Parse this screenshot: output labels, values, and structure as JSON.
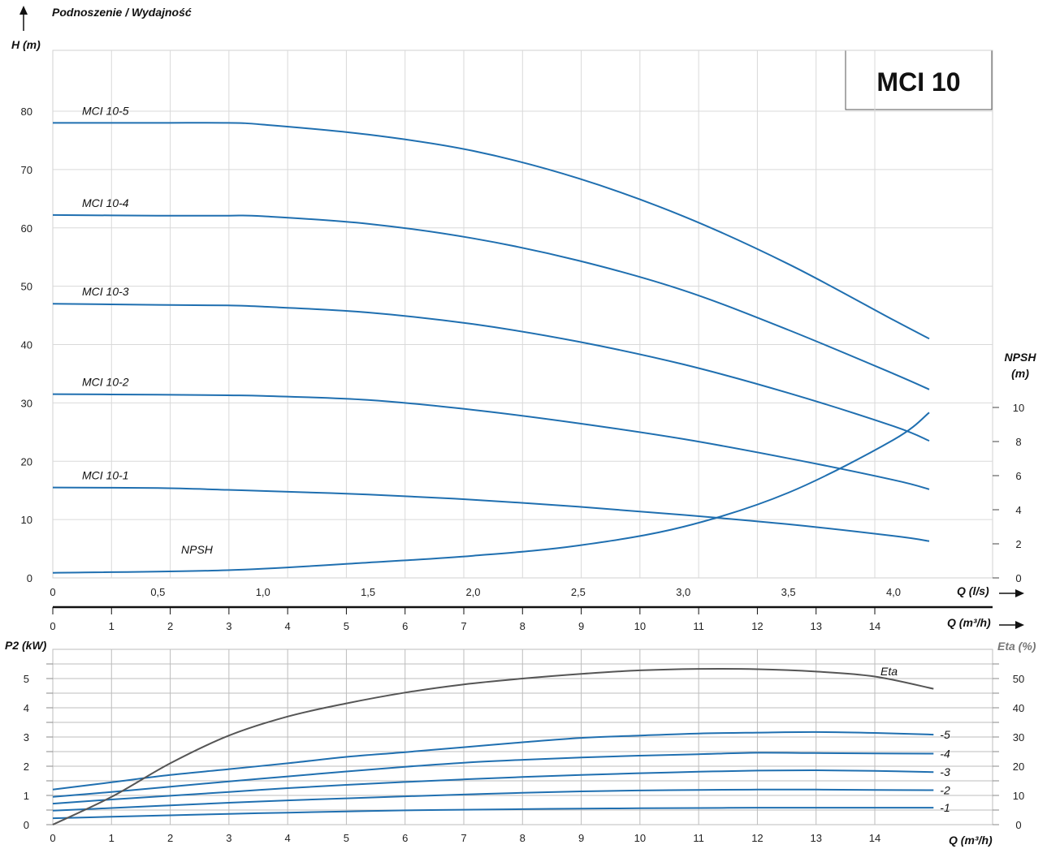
{
  "title": "MCI 10",
  "top_label": "Podnoszenie / Wydajność",
  "chart_data": [
    {
      "type": "line",
      "name": "head-curves",
      "ylabel": "H (m)",
      "ylim": [
        0,
        85
      ],
      "yticks": [
        0,
        10,
        20,
        30,
        40,
        50,
        60,
        70,
        80
      ],
      "xlabel_ls": "Q (l/s)",
      "xlim_ls": [
        0,
        4.45
      ],
      "xticks_ls": [
        "0",
        "0,5",
        "1,0",
        "1,5",
        "2,0",
        "2,5",
        "3,0",
        "3,5",
        "4,0"
      ],
      "xlabel_m3h": "Q (m³/h)",
      "xticks_m3h": [
        "0",
        "1",
        "2",
        "3",
        "4",
        "5",
        "6",
        "7",
        "8",
        "9",
        "10",
        "11",
        "12",
        "13",
        "14"
      ],
      "y2label": "NPSH (m)",
      "y2ticks": [
        0,
        2,
        4,
        6,
        8,
        10
      ],
      "y2lim": [
        0,
        10
      ],
      "series": [
        {
          "name": "MCI 10-5",
          "x": [
            0,
            0.5,
            0.83,
            1.0,
            1.5,
            2.0,
            2.5,
            3.0,
            3.5,
            4.0,
            4.17
          ],
          "y": [
            78,
            78,
            78,
            77.7,
            76,
            73.2,
            68.5,
            62,
            53.8,
            44.2,
            41
          ]
        },
        {
          "name": "MCI 10-4",
          "x": [
            0,
            0.5,
            0.83,
            1.0,
            1.5,
            2.0,
            2.5,
            3.0,
            3.5,
            4.0,
            4.17
          ],
          "y": [
            62.2,
            62.1,
            62.1,
            62,
            60.7,
            58.2,
            54.4,
            49.3,
            42.5,
            35,
            32.3
          ]
        },
        {
          "name": "MCI 10-3",
          "x": [
            0,
            0.5,
            0.83,
            1.0,
            1.5,
            2.0,
            2.5,
            3.0,
            3.5,
            4.0,
            4.17
          ],
          "y": [
            47,
            46.8,
            46.7,
            46.5,
            45.5,
            43.5,
            40.5,
            36.6,
            31.7,
            26,
            23.5
          ]
        },
        {
          "name": "MCI 10-2",
          "x": [
            0,
            0.5,
            0.83,
            1.0,
            1.5,
            2.0,
            2.5,
            3.0,
            3.5,
            4.0,
            4.17
          ],
          "y": [
            31.5,
            31.4,
            31.3,
            31.2,
            30.5,
            28.8,
            26.5,
            23.8,
            20.5,
            16.8,
            15.2
          ]
        },
        {
          "name": "MCI 10-1",
          "x": [
            0,
            0.5,
            0.83,
            1.0,
            1.5,
            2.0,
            2.5,
            3.0,
            3.5,
            4.0,
            4.17
          ],
          "y": [
            15.5,
            15.4,
            15.1,
            14.9,
            14.3,
            13.4,
            12.2,
            10.8,
            9.2,
            7.2,
            6.3
          ]
        }
      ],
      "npsh": {
        "name": "NPSH",
        "x": [
          0,
          0.83,
          1.5,
          2.0,
          2.5,
          3.0,
          3.5,
          4.0,
          4.17
        ],
        "y": [
          0.3,
          0.45,
          0.9,
          1.3,
          1.9,
          3.0,
          5.0,
          8.1,
          9.7
        ]
      }
    },
    {
      "type": "line",
      "name": "power-efficiency",
      "ylabel": "P2 (kW)",
      "ylim": [
        0,
        5.5
      ],
      "yticks": [
        0,
        1,
        2,
        3,
        4,
        5
      ],
      "xlabel": "Q (m³/h)",
      "xlim": [
        0,
        15.4
      ],
      "xticks": [
        "0",
        "1",
        "2",
        "3",
        "4",
        "5",
        "6",
        "7",
        "8",
        "9",
        "10",
        "11",
        "12",
        "13",
        "14"
      ],
      "y2label": "Eta (%)",
      "y2ticks": [
        0,
        10,
        20,
        30,
        40,
        50
      ],
      "y2lim": [
        0,
        55
      ],
      "series": [
        {
          "name": "-5",
          "x": [
            0,
            1,
            2,
            3,
            4,
            5,
            6,
            7,
            8,
            9,
            10,
            11,
            12,
            13,
            14,
            15
          ],
          "y": [
            1.2,
            1.45,
            1.7,
            1.9,
            2.1,
            2.32,
            2.48,
            2.65,
            2.82,
            2.97,
            3.05,
            3.12,
            3.15,
            3.17,
            3.14,
            3.08
          ]
        },
        {
          "name": "-4",
          "x": [
            0,
            1,
            2,
            3,
            4,
            5,
            6,
            7,
            8,
            9,
            10,
            11,
            12,
            13,
            14,
            15
          ],
          "y": [
            0.95,
            1.12,
            1.3,
            1.48,
            1.65,
            1.82,
            1.98,
            2.12,
            2.22,
            2.3,
            2.36,
            2.41,
            2.46,
            2.45,
            2.44,
            2.43
          ]
        },
        {
          "name": "-3",
          "x": [
            0,
            1,
            2,
            3,
            4,
            5,
            6,
            7,
            8,
            9,
            10,
            11,
            12,
            13,
            14,
            15
          ],
          "y": [
            0.72,
            0.86,
            0.99,
            1.12,
            1.25,
            1.36,
            1.46,
            1.55,
            1.63,
            1.7,
            1.76,
            1.81,
            1.85,
            1.86,
            1.84,
            1.8
          ]
        },
        {
          "name": "-2",
          "x": [
            0,
            1,
            2,
            3,
            4,
            5,
            6,
            7,
            8,
            9,
            10,
            11,
            12,
            13,
            14,
            15
          ],
          "y": [
            0.48,
            0.57,
            0.66,
            0.75,
            0.83,
            0.9,
            0.97,
            1.03,
            1.09,
            1.14,
            1.17,
            1.19,
            1.2,
            1.2,
            1.19,
            1.18
          ]
        },
        {
          "name": "-1",
          "x": [
            0,
            1,
            2,
            3,
            4,
            5,
            6,
            7,
            8,
            9,
            10,
            11,
            12,
            13,
            14,
            15
          ],
          "y": [
            0.22,
            0.27,
            0.32,
            0.37,
            0.41,
            0.45,
            0.49,
            0.51,
            0.53,
            0.55,
            0.56,
            0.57,
            0.58,
            0.58,
            0.58,
            0.58
          ]
        }
      ],
      "eta": {
        "name": "Eta",
        "x": [
          0,
          1,
          2,
          3,
          4,
          5,
          6,
          7,
          8,
          9,
          10,
          11,
          12,
          13,
          14,
          15
        ],
        "y": [
          0,
          9.5,
          21,
          30.5,
          37,
          41.5,
          45.2,
          48,
          50,
          51.6,
          52.8,
          53.3,
          53.2,
          52.4,
          50.7,
          46.5
        ]
      }
    }
  ]
}
